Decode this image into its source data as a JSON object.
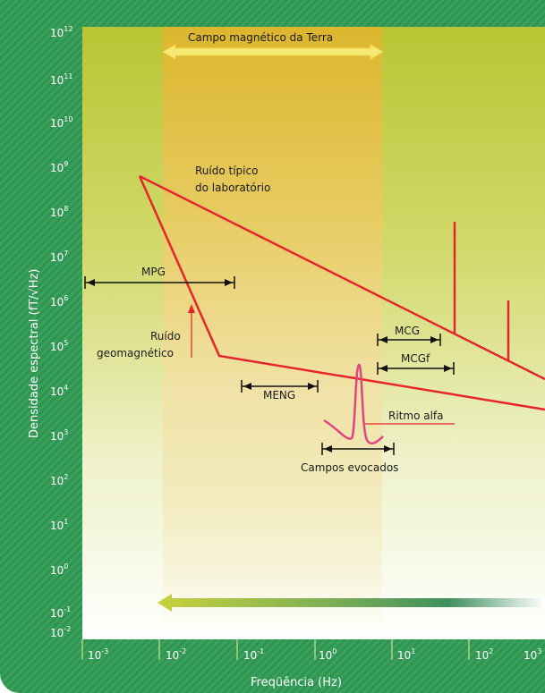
{
  "axes": {
    "ylabel": "Densidade espectral (fT/√Hz)",
    "xlabel": "Freqüência (Hz)",
    "y_ticks": [
      {
        "base": "10",
        "exp": "12"
      },
      {
        "base": "10",
        "exp": "11"
      },
      {
        "base": "10",
        "exp": "10"
      },
      {
        "base": "10",
        "exp": "9"
      },
      {
        "base": "10",
        "exp": "8"
      },
      {
        "base": "10",
        "exp": "7"
      },
      {
        "base": "10",
        "exp": "6"
      },
      {
        "base": "10",
        "exp": "5"
      },
      {
        "base": "10",
        "exp": "4"
      },
      {
        "base": "10",
        "exp": "3"
      },
      {
        "base": "10",
        "exp": "2"
      },
      {
        "base": "10",
        "exp": "1"
      },
      {
        "base": "10",
        "exp": "0"
      },
      {
        "base": "10",
        "exp": "-1"
      },
      {
        "base": "10",
        "exp": "-2"
      }
    ],
    "x_ticks": [
      {
        "base": "10",
        "exp": "-3"
      },
      {
        "base": "10",
        "exp": "-2"
      },
      {
        "base": "10",
        "exp": "-1"
      },
      {
        "base": "10",
        "exp": "0"
      },
      {
        "base": "10",
        "exp": "1"
      },
      {
        "base": "10",
        "exp": "2"
      },
      {
        "base": "10",
        "exp": "3"
      }
    ]
  },
  "labels": {
    "earth_field": "Campo magnético da Terra",
    "lab_noise_line1": "Ruído típico",
    "lab_noise_line2": "do laboratório",
    "geo_noise_line1": "Ruído",
    "geo_noise_line2": "geomagnético",
    "mpg": "MPG",
    "mcg": "MCG",
    "mcgf": "MCGf",
    "meng": "MENG",
    "alpha": "Ritmo alfa",
    "evoked": "Campos evocados"
  },
  "colors": {
    "noise_curve": "#e8232c",
    "alpha_curve": "#e0457f",
    "earth_arrow": "#f5e66a",
    "range_marker": "#111111"
  }
}
